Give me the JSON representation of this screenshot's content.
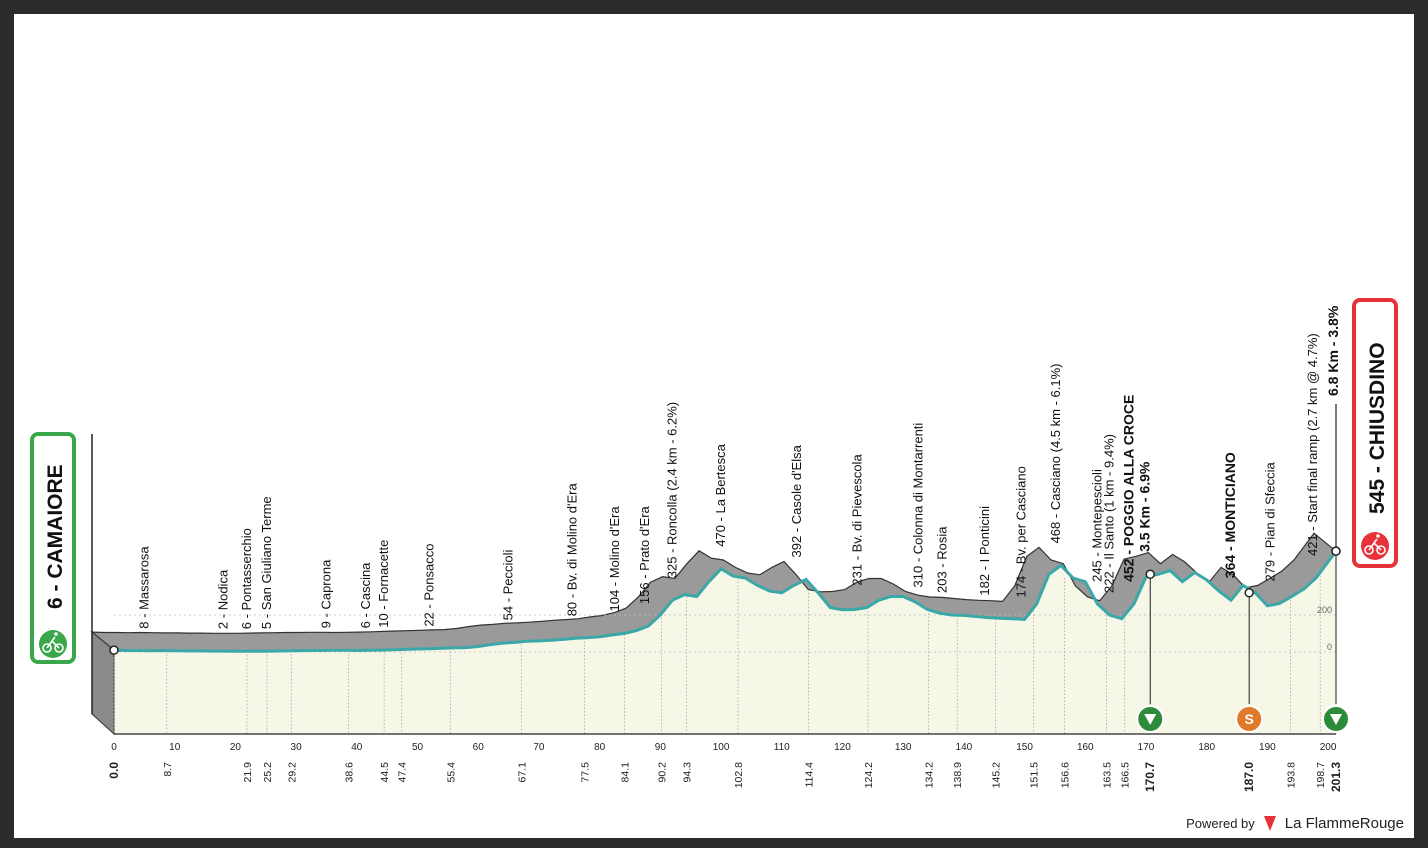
{
  "chart_data": {
    "type": "area",
    "start": {
      "name": "6 - CAMAIORE",
      "km": "0.0"
    },
    "finish": {
      "name": "545 - CHIUSDINO",
      "km": "201.3",
      "climb": "6.8 Km - 3.8%"
    },
    "x": [
      0,
      2,
      4,
      6,
      8,
      10,
      12,
      14,
      16,
      18,
      20,
      22,
      24,
      26,
      28,
      30,
      32,
      34,
      36,
      38,
      40,
      42,
      44,
      46,
      48,
      50,
      52,
      54,
      56,
      58,
      60,
      62,
      64,
      66,
      68,
      70,
      72,
      74,
      76,
      78,
      80,
      82,
      84,
      86,
      88,
      90,
      92,
      94,
      96,
      98,
      100,
      102,
      104,
      106,
      108,
      110,
      112,
      114,
      116,
      118,
      120,
      122,
      124,
      126,
      128,
      130,
      132,
      134,
      136,
      138,
      140,
      142,
      144,
      146,
      148,
      150,
      152,
      154,
      156,
      158,
      160,
      162,
      164,
      166,
      168,
      170,
      172,
      174,
      176,
      178,
      180,
      182,
      184,
      186,
      188,
      190,
      192,
      194,
      196,
      198,
      201.3
    ],
    "y": [
      10,
      8,
      8,
      7,
      8,
      7,
      6,
      6,
      5,
      5,
      4,
      4,
      4,
      5,
      6,
      7,
      8,
      8,
      9,
      9,
      8,
      9,
      10,
      12,
      14,
      16,
      18,
      20,
      22,
      24,
      30,
      40,
      48,
      52,
      58,
      60,
      64,
      68,
      74,
      78,
      82,
      92,
      100,
      115,
      140,
      200,
      280,
      310,
      300,
      380,
      450,
      410,
      400,
      360,
      330,
      320,
      360,
      392,
      320,
      240,
      228,
      230,
      240,
      280,
      300,
      300,
      270,
      230,
      210,
      200,
      198,
      192,
      186,
      182,
      180,
      176,
      260,
      420,
      468,
      400,
      380,
      260,
      200,
      180,
      260,
      405,
      420,
      440,
      380,
      430,
      390,
      330,
      280,
      360,
      320,
      250,
      262,
      300,
      340,
      400,
      545
    ],
    "ylim": [
      0,
      1000
    ],
    "xticks": [
      0,
      10,
      20,
      30,
      40,
      50,
      60,
      70,
      80,
      90,
      100,
      110,
      120,
      130,
      140,
      150,
      160,
      170,
      180,
      190,
      200
    ],
    "yticks": [
      0,
      200
    ],
    "waypoints": [
      {
        "km": 5.0,
        "label": "8 - Massarosa"
      },
      {
        "km": 18.0,
        "label": "2 - Nodica"
      },
      {
        "km": 21.9,
        "label": "6 - Pontasserchio"
      },
      {
        "km": 25.2,
        "label": "5 - San Giuliano Terme"
      },
      {
        "km": 35.0,
        "label": "9 - Caprona"
      },
      {
        "km": 41.5,
        "label": "6 - Cascina"
      },
      {
        "km": 44.5,
        "label": "10 - Fornacette"
      },
      {
        "km": 52.0,
        "label": "22 - Ponsacco"
      },
      {
        "km": 65.0,
        "label": "54 - Peccioli"
      },
      {
        "km": 75.5,
        "label": "80 - Bv. di Molino d'Era"
      },
      {
        "km": 82.5,
        "label": "104 - Molino d'Era"
      },
      {
        "km": 87.5,
        "label": "156 - Prato d'Era"
      },
      {
        "km": 92.0,
        "label": "325 - Roncolla (2.4 km - 6.2%)"
      },
      {
        "km": 100.0,
        "label": "470 - La Bertesca"
      },
      {
        "km": 112.5,
        "label": "392 - Casole d'Elsa"
      },
      {
        "km": 122.5,
        "label": "231 - Bv. di Pievescola"
      },
      {
        "km": 132.5,
        "label": "310 - Colonna di Montarrenti"
      },
      {
        "km": 136.5,
        "label": "203 - Rosia"
      },
      {
        "km": 143.5,
        "label": "182 - I Ponticini"
      },
      {
        "km": 149.5,
        "label": "174 - Bv. per Casciano"
      },
      {
        "km": 155.2,
        "label": "468 - Casciano (4.5 km - 6.1%)"
      },
      {
        "km": 162.0,
        "label": "245 - Montepescioli"
      },
      {
        "km": 164.0,
        "label": "222 - Il Santo (1 km - 9.4%)"
      },
      {
        "km": 167.3,
        "label": "452 - POGGIO ALLA CROCE",
        "sub": "3.5 Km - 6.9%",
        "bold": true
      },
      {
        "km": 184.0,
        "label": "364 - MONTICIANO",
        "bold": true
      },
      {
        "km": 190.5,
        "label": "279 - Pian di Sfeccia"
      },
      {
        "km": 197.5,
        "label": "421 - Start final ramp (2.7 km @ 4.7%)"
      }
    ],
    "km_markers": [
      {
        "km": 0.0,
        "bold": true
      },
      {
        "km": 8.7
      },
      {
        "km": 21.9
      },
      {
        "km": 25.2
      },
      {
        "km": 29.2
      },
      {
        "km": 38.6
      },
      {
        "km": 44.5
      },
      {
        "km": 47.4
      },
      {
        "km": 55.4
      },
      {
        "km": 67.1
      },
      {
        "km": 77.5
      },
      {
        "km": 84.1
      },
      {
        "km": 90.2
      },
      {
        "km": 94.3
      },
      {
        "km": 102.8
      },
      {
        "km": 114.4
      },
      {
        "km": 124.2
      },
      {
        "km": 134.2
      },
      {
        "km": 138.9
      },
      {
        "km": 145.2
      },
      {
        "km": 151.5
      },
      {
        "km": 156.6
      },
      {
        "km": 163.5
      },
      {
        "km": 166.5
      },
      {
        "km": 170.7,
        "bold": true
      },
      {
        "km": 187.0,
        "bold": true
      },
      {
        "km": 193.8
      },
      {
        "km": 198.7
      },
      {
        "km": 201.3,
        "bold": true
      }
    ],
    "special_markers": [
      {
        "km": 170.7,
        "type": "kom",
        "color": "#2e8b3a"
      },
      {
        "km": 187.0,
        "type": "sprint",
        "color": "#e07a2a"
      },
      {
        "km": 201.3,
        "type": "kom",
        "color": "#2e8b3a"
      }
    ],
    "colors": {
      "terrain_fill": "#9a9a9a",
      "profile_line": "#3aa8a8",
      "ground_fill": "#f6f7e6",
      "start": "#3aa84a",
      "finish": "#e8323a"
    }
  },
  "footer": {
    "powered_by": "Powered by",
    "brand": "La FlammeRouge"
  }
}
